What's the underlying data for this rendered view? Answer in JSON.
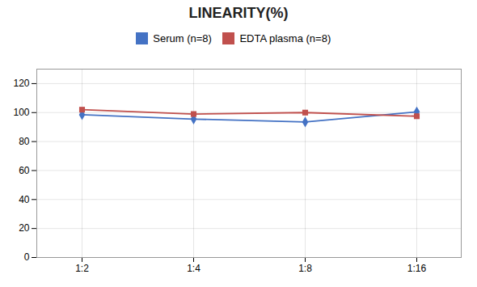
{
  "chart_data": {
    "type": "line",
    "title": "LINEARITY(%)",
    "categories": [
      "1:2",
      "1:4",
      "1:8",
      "1:16"
    ],
    "series": [
      {
        "name": "Serum (n=8)",
        "color": "#4472C4",
        "marker": "diamond",
        "values": [
          98.5,
          95.5,
          93.5,
          100.5
        ]
      },
      {
        "name": "EDTA plasma (n=8)",
        "color": "#C0504D",
        "marker": "square",
        "values": [
          102.0,
          99.0,
          100.0,
          97.5
        ]
      }
    ],
    "ylim": [
      0,
      130
    ],
    "yticks": [
      0,
      20,
      40,
      60,
      80,
      100,
      120
    ],
    "grid": true,
    "legend": "top"
  }
}
